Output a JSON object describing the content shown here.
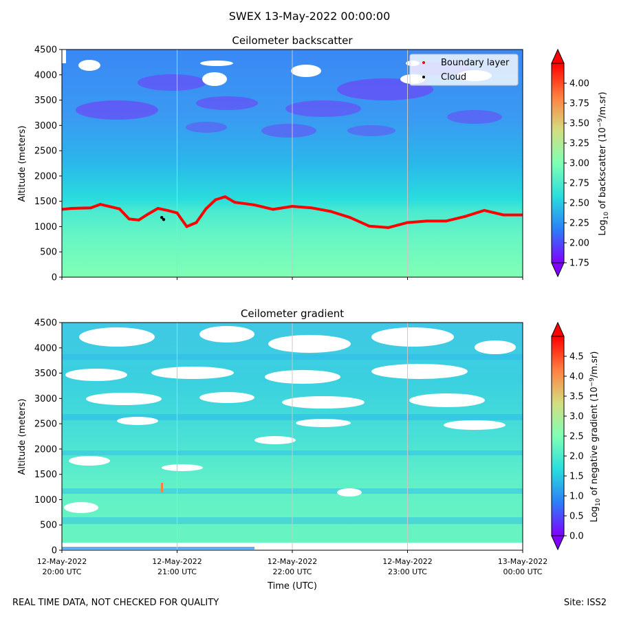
{
  "figure": {
    "suptitle": "SWEX 13-May-2022 00:00:00",
    "footer_left": "REAL TIME DATA, NOT CHECKED FOR QUALITY",
    "footer_right": "Site: ISS2"
  },
  "colors": {
    "boundary_layer": "#ff0000",
    "cloud": "#000000",
    "colormap": [
      "#8000ff",
      "#2c7ef7",
      "#2adddd",
      "#80ffb4",
      "#d4dd80",
      "#ff7f41",
      "#ff0000"
    ],
    "grid": "#c8c8c8"
  },
  "chart_data": [
    {
      "type": "heatmap",
      "title": "Ceilometer backscatter",
      "xlabel": "",
      "ylabel": "Altitude (meters)",
      "ylim": [
        0,
        4500
      ],
      "yticks": [
        0,
        500,
        1000,
        1500,
        2000,
        2500,
        3000,
        3500,
        4000,
        4500
      ],
      "xlim": [
        "2022-05-12 20:00",
        "2022-05-13 00:00"
      ],
      "xticks": [
        "2022-05-12 20:00",
        "2022-05-12 21:00",
        "2022-05-12 22:00",
        "2022-05-12 23:00",
        "2022-05-13 00:00"
      ],
      "x_grid": true,
      "colorbar": {
        "label": "Log10 of backscatter (10^-9/m.sr)",
        "range": [
          1.75,
          4.25
        ],
        "ticks": [
          "1.75",
          "2.00",
          "2.25",
          "2.50",
          "2.75",
          "3.00",
          "3.25",
          "3.50",
          "3.75",
          "4.00"
        ],
        "tick_values": [
          1.75,
          2.0,
          2.25,
          2.5,
          2.75,
          3.0,
          3.25,
          3.5,
          3.75,
          4.0
        ],
        "extend": "both"
      },
      "legend": {
        "position": "top-right",
        "entries": [
          "Boundary layer",
          "Cloud"
        ]
      },
      "field_description_by_altitude": [
        {
          "altitude": 200,
          "log_backscatter": 2.8
        },
        {
          "altitude": 1000,
          "log_backscatter": 2.75
        },
        {
          "altitude": 1400,
          "log_backscatter": 2.5
        },
        {
          "altitude": 2000,
          "log_backscatter": 2.3
        },
        {
          "altitude": 3000,
          "log_backscatter": 2.2
        },
        {
          "altitude": 4000,
          "log_backscatter": 2.15
        }
      ],
      "series": [
        {
          "name": "Boundary layer",
          "points": [
            [
              "2022-05-12 20:00",
              1340
            ],
            [
              "2022-05-12 20:05",
              1360
            ],
            [
              "2022-05-12 20:15",
              1370
            ],
            [
              "2022-05-12 20:20",
              1440
            ],
            [
              "2022-05-12 20:30",
              1350
            ],
            [
              "2022-05-12 20:35",
              1150
            ],
            [
              "2022-05-12 20:40",
              1130
            ],
            [
              "2022-05-12 20:45",
              1250
            ],
            [
              "2022-05-12 20:50",
              1360
            ],
            [
              "2022-05-12 20:55",
              1320
            ],
            [
              "2022-05-12 21:00",
              1270
            ],
            [
              "2022-05-12 21:05",
              1000
            ],
            [
              "2022-05-12 21:10",
              1080
            ],
            [
              "2022-05-12 21:15",
              1350
            ],
            [
              "2022-05-12 21:20",
              1530
            ],
            [
              "2022-05-12 21:25",
              1590
            ],
            [
              "2022-05-12 21:30",
              1480
            ],
            [
              "2022-05-12 21:40",
              1430
            ],
            [
              "2022-05-12 21:50",
              1340
            ],
            [
              "2022-05-12 22:00",
              1400
            ],
            [
              "2022-05-12 22:10",
              1370
            ],
            [
              "2022-05-12 22:20",
              1300
            ],
            [
              "2022-05-12 22:30",
              1180
            ],
            [
              "2022-05-12 22:40",
              1010
            ],
            [
              "2022-05-12 22:50",
              980
            ],
            [
              "2022-05-12 23:00",
              1080
            ],
            [
              "2022-05-12 23:10",
              1110
            ],
            [
              "2022-05-12 23:20",
              1110
            ],
            [
              "2022-05-12 23:30",
              1200
            ],
            [
              "2022-05-12 23:40",
              1320
            ],
            [
              "2022-05-12 23:50",
              1230
            ],
            [
              "2022-05-13 00:00",
              1230
            ]
          ]
        },
        {
          "name": "Cloud",
          "points": [
            [
              "2022-05-12 20:52",
              1180
            ],
            [
              "2022-05-12 20:53",
              1140
            ]
          ]
        }
      ]
    },
    {
      "type": "heatmap",
      "title": "Ceilometer gradient",
      "xlabel": "Time (UTC)",
      "ylabel": "Altitude (meters)",
      "ylim": [
        0,
        4500
      ],
      "yticks": [
        0,
        500,
        1000,
        1500,
        2000,
        2500,
        3000,
        3500,
        4000,
        4500
      ],
      "xlim": [
        "2022-05-12 20:00",
        "2022-05-13 00:00"
      ],
      "xticks": [
        "2022-05-12 20:00",
        "2022-05-12 21:00",
        "2022-05-12 22:00",
        "2022-05-12 23:00",
        "2022-05-13 00:00"
      ],
      "xtick_labels": [
        [
          "12-May-2022",
          "20:00 UTC"
        ],
        [
          "12-May-2022",
          "21:00 UTC"
        ],
        [
          "12-May-2022",
          "22:00 UTC"
        ],
        [
          "12-May-2022",
          "23:00 UTC"
        ],
        [
          "13-May-2022",
          "00:00 UTC"
        ]
      ],
      "x_grid": true,
      "colorbar": {
        "label": "Log10 of negative gradient (10^-9/m.sr)",
        "range": [
          0.0,
          5.0
        ],
        "ticks": [
          "0.0",
          "0.5",
          "1.0",
          "1.5",
          "2.0",
          "2.5",
          "3.0",
          "3.5",
          "4.0",
          "4.5"
        ],
        "tick_values": [
          0.0,
          0.5,
          1.0,
          1.5,
          2.0,
          2.5,
          3.0,
          3.5,
          4.0,
          4.5
        ],
        "extend": "both"
      },
      "field_description_by_altitude": [
        {
          "altitude": 300,
          "log_gradient": 1.9
        },
        {
          "altitude": 1000,
          "log_gradient": 1.8
        },
        {
          "altitude": 1600,
          "log_gradient": 1.6
        },
        {
          "altitude": 2500,
          "log_gradient": 1.5
        },
        {
          "altitude": 3500,
          "log_gradient": 1.4
        }
      ]
    }
  ]
}
